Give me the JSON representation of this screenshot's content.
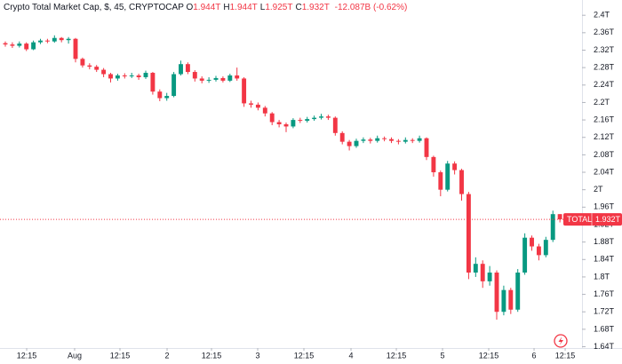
{
  "chart_data": {
    "type": "candlestick",
    "title": "Crypto Total Market Cap, $, 45, CRYPTOCAP",
    "ohlc_labels": [
      {
        "label": "O",
        "value": "1.944T"
      },
      {
        "label": "H",
        "value": "1.944T"
      },
      {
        "label": "L",
        "value": "1.925T"
      },
      {
        "label": "C",
        "value": "1.932T"
      }
    ],
    "change": "-12.087B (-0.62%)",
    "price_badge": {
      "name": "TOTAL",
      "value": "1.932T"
    },
    "up_color": "#089981",
    "down_color": "#f23645",
    "grid": false,
    "ylim": [
      1.637,
      2.435
    ],
    "yticks": [
      {
        "value": 2.4,
        "label": "2.4T"
      },
      {
        "value": 2.36,
        "label": "2.36T"
      },
      {
        "value": 2.32,
        "label": "2.32T"
      },
      {
        "value": 2.28,
        "label": "2.28T"
      },
      {
        "value": 2.24,
        "label": "2.24T"
      },
      {
        "value": 2.2,
        "label": "2.2T"
      },
      {
        "value": 2.16,
        "label": "2.16T"
      },
      {
        "value": 2.12,
        "label": "2.12T"
      },
      {
        "value": 2.08,
        "label": "2.08T"
      },
      {
        "value": 2.04,
        "label": "2.04T"
      },
      {
        "value": 2,
        "label": "2T"
      },
      {
        "value": 1.96,
        "label": "1.96T"
      },
      {
        "value": 1.92,
        "label": "1.92T"
      },
      {
        "value": 1.88,
        "label": "1.88T"
      },
      {
        "value": 1.84,
        "label": "1.84T"
      },
      {
        "value": 1.8,
        "label": "1.8T"
      },
      {
        "value": 1.76,
        "label": "1.76T"
      },
      {
        "value": 1.72,
        "label": "1.72T"
      },
      {
        "value": 1.68,
        "label": "1.68T"
      },
      {
        "value": 1.64,
        "label": "1.64T"
      }
    ],
    "xlim": [
      -0.76,
      82.15
    ],
    "xticks": [
      {
        "value": 3.04,
        "label": "12:15"
      },
      {
        "value": 9.87,
        "label": "Aug"
      },
      {
        "value": 16.33,
        "label": "12:15"
      },
      {
        "value": 23.04,
        "label": "2"
      },
      {
        "value": 29.37,
        "label": "12:15"
      },
      {
        "value": 35.95,
        "label": "3"
      },
      {
        "value": 42.53,
        "label": "12:15"
      },
      {
        "value": 49.24,
        "label": "4"
      },
      {
        "value": 55.7,
        "label": "12:15"
      },
      {
        "value": 62.28,
        "label": "5"
      },
      {
        "value": 68.86,
        "label": "12:15"
      },
      {
        "value": 75.32,
        "label": "6"
      },
      {
        "value": 79.75,
        "label": "12:15"
      }
    ],
    "open": [
      2.336,
      2.333,
      2.33,
      2.335,
      2.322,
      2.338,
      2.342,
      2.34,
      2.348,
      2.343,
      2.346,
      2.3,
      2.285,
      2.282,
      2.275,
      2.265,
      2.255,
      2.262,
      2.26,
      2.262,
      2.258,
      2.268,
      2.225,
      2.21,
      2.215,
      2.265,
      2.288,
      2.27,
      2.255,
      2.25,
      2.252,
      2.256,
      2.25,
      2.262,
      2.255,
      2.198,
      2.195,
      2.188,
      2.175,
      2.155,
      2.15,
      2.145,
      2.16,
      2.158,
      2.162,
      2.165,
      2.168,
      2.165,
      2.13,
      2.11,
      2.1,
      2.112,
      2.115,
      2.112,
      2.118,
      2.116,
      2.112,
      2.11,
      2.114,
      2.112,
      2.118,
      2.075,
      2.04,
      2.0,
      2.06,
      2.045,
      1.99,
      1.81,
      1.83,
      1.79,
      1.81,
      1.72,
      1.77,
      1.725,
      1.81,
      1.89,
      1.87,
      1.85,
      1.885,
      1.944
    ],
    "high": [
      2.34,
      2.338,
      2.34,
      2.338,
      2.342,
      2.346,
      2.346,
      2.354,
      2.35,
      2.35,
      2.348,
      2.303,
      2.29,
      2.286,
      2.279,
      2.268,
      2.266,
      2.267,
      2.268,
      2.266,
      2.273,
      2.27,
      2.23,
      2.222,
      2.27,
      2.296,
      2.292,
      2.274,
      2.26,
      2.258,
      2.261,
      2.26,
      2.266,
      2.28,
      2.258,
      2.204,
      2.2,
      2.192,
      2.178,
      2.16,
      2.154,
      2.164,
      2.165,
      2.167,
      2.17,
      2.174,
      2.172,
      2.168,
      2.134,
      2.114,
      2.117,
      2.12,
      2.119,
      2.124,
      2.122,
      2.12,
      2.116,
      2.12,
      2.118,
      2.124,
      2.12,
      2.078,
      2.044,
      2.066,
      2.065,
      2.048,
      1.995,
      1.845,
      1.838,
      1.825,
      1.815,
      1.78,
      1.775,
      1.818,
      1.9,
      1.895,
      1.876,
      1.892,
      1.952,
      1.944
    ],
    "low": [
      2.328,
      2.325,
      2.326,
      2.318,
      2.32,
      2.334,
      2.336,
      2.337,
      2.338,
      2.335,
      2.292,
      2.28,
      2.276,
      2.27,
      2.258,
      2.246,
      2.25,
      2.255,
      2.256,
      2.252,
      2.254,
      2.218,
      2.203,
      2.204,
      2.212,
      2.262,
      2.265,
      2.248,
      2.244,
      2.245,
      2.248,
      2.246,
      2.247,
      2.25,
      2.19,
      2.188,
      2.182,
      2.168,
      2.148,
      2.143,
      2.132,
      2.141,
      2.153,
      2.154,
      2.158,
      2.161,
      2.16,
      2.124,
      2.104,
      2.09,
      2.096,
      2.107,
      2.106,
      2.108,
      2.111,
      2.107,
      2.104,
      2.106,
      2.107,
      2.108,
      2.068,
      2.03,
      1.985,
      1.996,
      2.035,
      1.975,
      1.795,
      1.8,
      1.775,
      1.78,
      1.702,
      1.712,
      1.715,
      1.72,
      1.805,
      1.86,
      1.838,
      1.845,
      1.88,
      1.925
    ],
    "close": [
      2.333,
      2.33,
      2.335,
      2.322,
      2.338,
      2.342,
      2.34,
      2.348,
      2.343,
      2.346,
      2.3,
      2.285,
      2.282,
      2.275,
      2.265,
      2.255,
      2.262,
      2.26,
      2.262,
      2.258,
      2.268,
      2.225,
      2.21,
      2.215,
      2.265,
      2.288,
      2.27,
      2.255,
      2.25,
      2.252,
      2.256,
      2.25,
      2.262,
      2.255,
      2.198,
      2.195,
      2.188,
      2.175,
      2.155,
      2.15,
      2.145,
      2.16,
      2.158,
      2.162,
      2.165,
      2.168,
      2.165,
      2.13,
      2.11,
      2.1,
      2.112,
      2.115,
      2.112,
      2.118,
      2.116,
      2.112,
      2.11,
      2.114,
      2.112,
      2.118,
      2.075,
      2.04,
      2.0,
      2.06,
      2.045,
      1.99,
      1.81,
      1.83,
      1.79,
      1.81,
      1.72,
      1.77,
      1.725,
      1.81,
      1.89,
      1.87,
      1.85,
      1.885,
      1.944,
      1.932
    ]
  }
}
